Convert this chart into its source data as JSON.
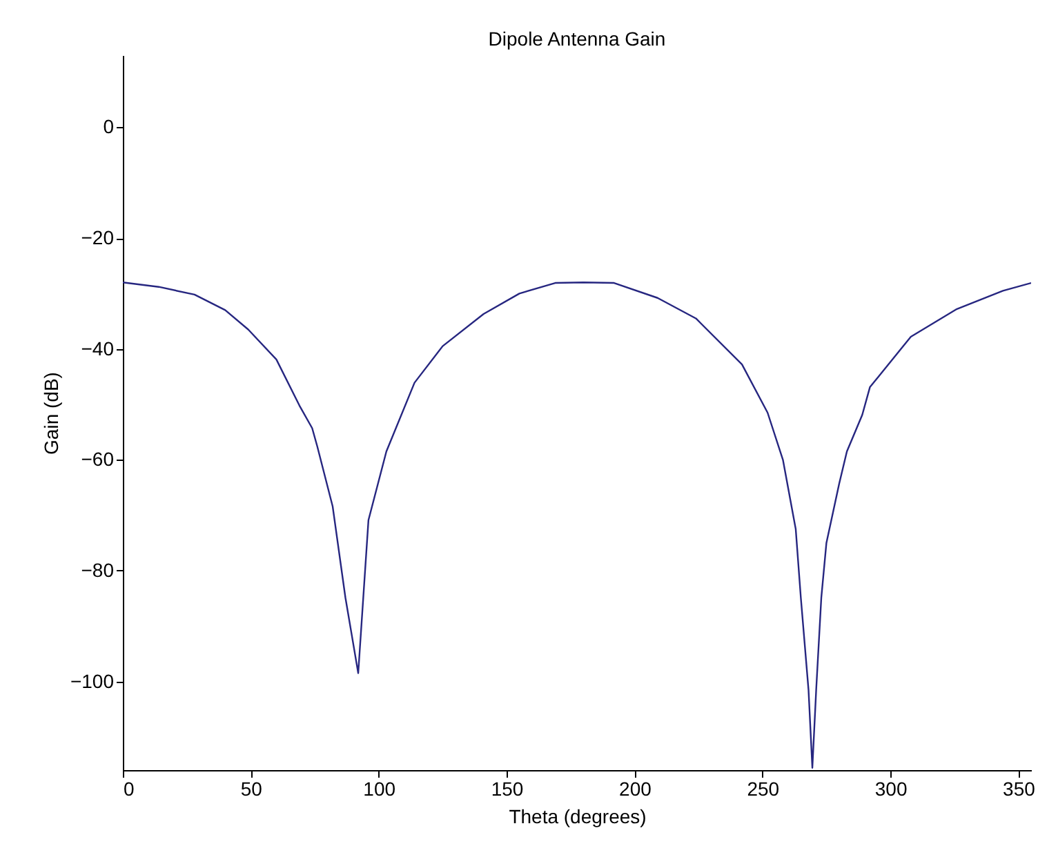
{
  "chart_data": {
    "type": "line",
    "title": "Dipole Antenna Gain",
    "xlabel": "Theta (degrees)",
    "ylabel": "Gain (dB)",
    "xlim": [
      0,
      355
    ],
    "xticks": [
      0,
      50,
      100,
      150,
      200,
      250,
      300,
      350
    ],
    "ylim": [
      -116,
      13
    ],
    "yticks": [
      -100,
      -80,
      -60,
      -40,
      -20,
      0
    ],
    "grid": false,
    "marker": "none",
    "line_style": "solid",
    "series": [
      {
        "color": "#262680",
        "x": [
          0,
          14,
          28,
          40,
          49,
          60,
          69,
          74,
          76,
          82,
          87,
          92,
          96,
          103,
          114,
          125,
          141,
          155,
          169,
          180,
          192,
          209,
          224,
          242,
          252,
          258,
          263,
          265,
          268,
          269.5,
          271,
          273,
          275,
          280,
          283,
          289,
          292,
          308,
          326,
          344,
          355
        ],
        "values": [
          -28,
          -28.8,
          -30.2,
          -33,
          -36.5,
          -41.9,
          -50.2,
          -54.3,
          -57.6,
          -68.4,
          -84.9,
          -98.5,
          -70.9,
          -58.5,
          -46.1,
          -39.5,
          -33.7,
          -30,
          -28.1,
          -28,
          -28.1,
          -30.8,
          -34.5,
          -42.8,
          -51.5,
          -60,
          -72.5,
          -84.9,
          -101.5,
          -115.6,
          -101.5,
          -84.9,
          -75,
          -64.3,
          -58.5,
          -51.9,
          -46.9,
          -37.8,
          -32.8,
          -29.5,
          -28.1
        ]
      }
    ]
  }
}
